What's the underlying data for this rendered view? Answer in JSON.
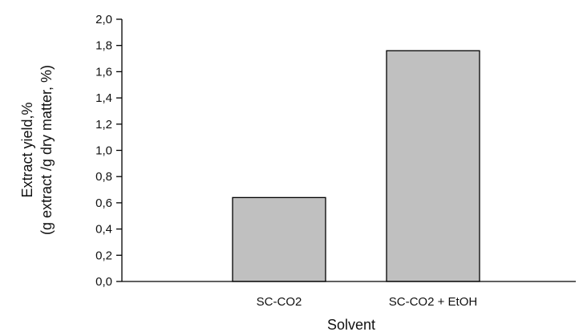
{
  "chart_data": {
    "type": "bar",
    "categories": [
      "SC-CO2",
      "SC-CO2 + EtOH"
    ],
    "values": [
      0.64,
      1.76
    ],
    "ylim": [
      0,
      2.0
    ],
    "yticks": [
      "0,0",
      "0,2",
      "0,4",
      "0,6",
      "0,8",
      "1,0",
      "1,2",
      "1,4",
      "1,6",
      "1,8",
      "2,0"
    ],
    "xlabel": "Solvent",
    "ylabel_lines": [
      "Extract yield,%",
      "(g extract /g dry matter, %)"
    ],
    "grid": false,
    "legend": "none",
    "colors": {
      "bar_fill": "#c0c0c0",
      "bar_stroke": "#000000",
      "axis": "#000000"
    }
  }
}
